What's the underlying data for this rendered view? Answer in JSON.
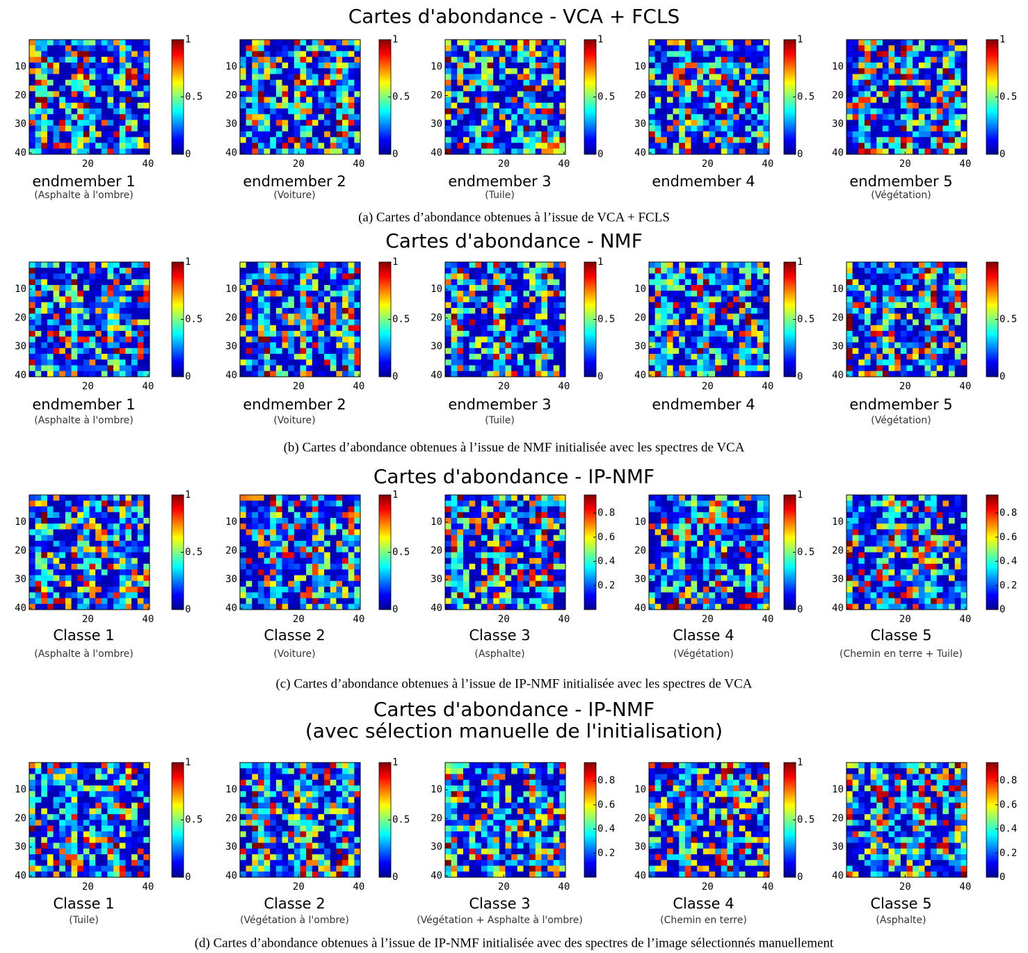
{
  "map_axes": {
    "xlim": [
      0.5,
      40.5
    ],
    "ylim": [
      0.5,
      40.5
    ],
    "xticks": [
      20,
      40
    ],
    "yticks": [
      10,
      20,
      30,
      40
    ]
  },
  "panels": [
    {
      "title": "Cartes d'abondance - VCA + FCLS",
      "caption": "(a) Cartes d’abondance obtenues à l’issue de VCA + FCLS",
      "maps": [
        {
          "label": "endmember 1",
          "sublabel": "(Asphalte à l'ombre)",
          "clim": [
            0,
            1
          ],
          "cticks": [
            0,
            0.5,
            1
          ]
        },
        {
          "label": "endmember 2",
          "sublabel": "(Voiture)",
          "clim": [
            0,
            1
          ],
          "cticks": [
            0,
            0.5,
            1
          ]
        },
        {
          "label": "endmember 3",
          "sublabel": "(Tuile)",
          "clim": [
            0,
            1
          ],
          "cticks": [
            0,
            0.5,
            1
          ]
        },
        {
          "label": "endmember 4",
          "sublabel": "",
          "clim": [
            0,
            1
          ],
          "cticks": [
            0,
            0.5,
            1
          ]
        },
        {
          "label": "endmember 5",
          "sublabel": "(Végétation)",
          "clim": [
            0,
            1
          ],
          "cticks": [
            0,
            0.5,
            1
          ]
        }
      ]
    },
    {
      "title": "Cartes d'abondance - NMF",
      "caption": "(b) Cartes d’abondance obtenues à l’issue de NMF initialisée avec les spectres de VCA",
      "maps": [
        {
          "label": "endmember 1",
          "sublabel": "(Asphalte à l'ombre)",
          "clim": [
            0,
            1
          ],
          "cticks": [
            0,
            0.5,
            1
          ]
        },
        {
          "label": "endmember 2",
          "sublabel": "(Voiture)",
          "clim": [
            0,
            1
          ],
          "cticks": [
            0,
            0.5,
            1
          ]
        },
        {
          "label": "endmember 3",
          "sublabel": "(Tuile)",
          "clim": [
            0,
            1
          ],
          "cticks": [
            0,
            0.5,
            1
          ]
        },
        {
          "label": "endmember 4",
          "sublabel": "",
          "clim": [
            0,
            1
          ],
          "cticks": [
            0,
            0.5,
            1
          ]
        },
        {
          "label": "endmember 5",
          "sublabel": "(Végétation)",
          "clim": [
            0,
            1
          ],
          "cticks": [
            0,
            0.5
          ]
        }
      ]
    },
    {
      "title": "Cartes d'abondance - IP-NMF",
      "caption": "(c) Cartes d’abondance obtenues à l’issue de IP-NMF initialisée avec les spectres de VCA",
      "maps": [
        {
          "label": "Classe 1",
          "sublabel": "(Asphalte à l'ombre)",
          "clim": [
            0,
            1
          ],
          "cticks": [
            0,
            0.5,
            1
          ]
        },
        {
          "label": "Classe 2",
          "sublabel": "(Voiture)",
          "clim": [
            0,
            1
          ],
          "cticks": [
            0,
            0.5,
            1
          ]
        },
        {
          "label": "Classe 3",
          "sublabel": "(Asphalte)",
          "clim": [
            0,
            0.95
          ],
          "cticks": [
            0.2,
            0.4,
            0.6,
            0.8
          ]
        },
        {
          "label": "Classe 4",
          "sublabel": "(Végétation)",
          "clim": [
            0,
            1
          ],
          "cticks": [
            0,
            0.5,
            1
          ]
        },
        {
          "label": "Classe 5",
          "sublabel": "(Chemin en terre + Tuile)",
          "clim": [
            0,
            0.95
          ],
          "cticks": [
            0,
            0.2,
            0.4,
            0.6,
            0.8
          ]
        }
      ]
    },
    {
      "title": "Cartes d'abondance - IP-NMF",
      "subtitle": "(avec sélection manuelle de l'initialisation)",
      "caption": "(d) Cartes d’abondance obtenues à l’issue de IP-NMF initialisée avec des spectres de l’image sélectionnés manuellement",
      "maps": [
        {
          "label": "Classe 1",
          "sublabel": "(Tuile)",
          "clim": [
            0,
            1
          ],
          "cticks": [
            0,
            0.5,
            1
          ]
        },
        {
          "label": "Classe 2",
          "sublabel": "(Végétation à l'ombre)",
          "clim": [
            0,
            1
          ],
          "cticks": [
            0,
            0.5,
            1
          ]
        },
        {
          "label": "Classe 3",
          "sublabel": "(Végétation + Asphalte à l'ombre)",
          "clim": [
            0,
            0.95
          ],
          "cticks": [
            0.2,
            0.4,
            0.6,
            0.8
          ]
        },
        {
          "label": "Classe 4",
          "sublabel": "(Chemin en terre)",
          "clim": [
            0,
            1
          ],
          "cticks": [
            0,
            0.5,
            1
          ]
        },
        {
          "label": "Classe 5",
          "sublabel": "(Asphalte)",
          "clim": [
            0,
            0.95
          ],
          "cticks": [
            0,
            0.2,
            0.4,
            0.6,
            0.8
          ]
        }
      ]
    }
  ]
}
